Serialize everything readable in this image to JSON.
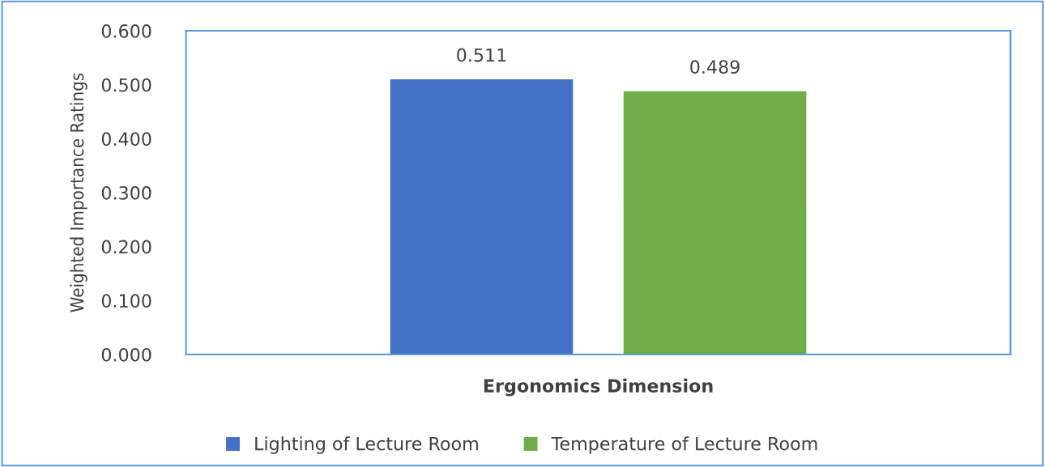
{
  "chart_data": {
    "type": "bar",
    "categories": [
      null
    ],
    "xlabel": "Ergonomics Dimension",
    "ylabel": "Weighted Importance Ratings",
    "series": [
      {
        "name": "Lighting of Lecture Room",
        "color": "#4472c4",
        "values": [
          0.511
        ]
      },
      {
        "name": "Temperature of Lecture Room",
        "color": "#70ad47",
        "values": [
          0.489
        ]
      }
    ],
    "ylim": [
      0,
      0.6
    ],
    "yticks": [
      {
        "value": 0,
        "label": "0.000"
      },
      {
        "value": 0.1,
        "label": "0.100"
      },
      {
        "value": 0.2,
        "label": "0.200"
      },
      {
        "value": 0.3,
        "label": "0.300"
      },
      {
        "value": 0.4,
        "label": "0.400"
      },
      {
        "value": 0.5,
        "label": "0.500"
      },
      {
        "value": 0.6,
        "label": "0.600"
      }
    ],
    "data_labels": true,
    "legend": "bottom",
    "grid": false
  }
}
